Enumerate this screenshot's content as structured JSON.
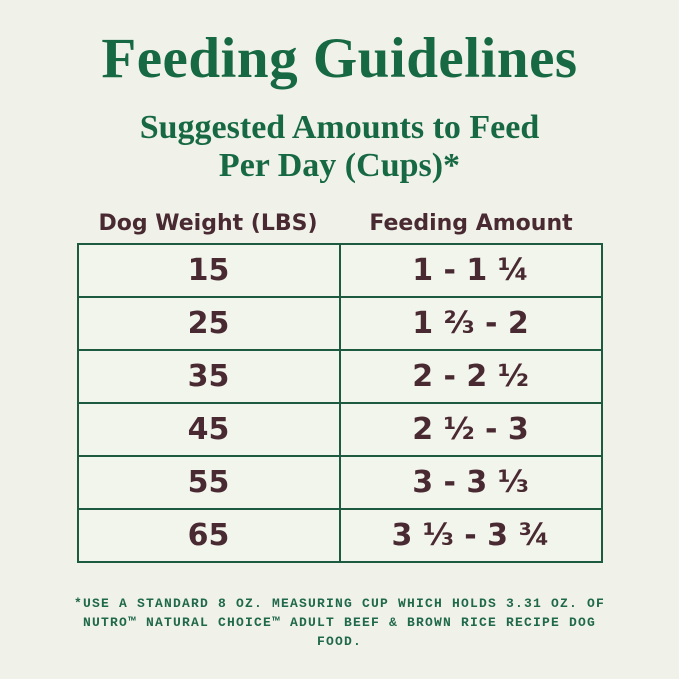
{
  "title": "Feeding Guidelines",
  "subtitle": {
    "line1": "Suggested Amounts to Feed",
    "line2": "Per Day (Cups)*"
  },
  "chart_data": {
    "type": "table",
    "title": "Feeding Guidelines",
    "subtitle": "Suggested Amounts to Feed Per Day (Cups)*",
    "columns": [
      "Dog Weight (LBS)",
      "Feeding Amount"
    ],
    "rows": [
      [
        "15",
        "1 - 1 ¼"
      ],
      [
        "25",
        "1 ⅔ - 2"
      ],
      [
        "35",
        "2 - 2 ½"
      ],
      [
        "45",
        "2 ½ - 3"
      ],
      [
        "55",
        "3 - 3 ⅓"
      ],
      [
        "65",
        "3 ⅓ - 3 ¾"
      ]
    ],
    "weights_lbs": [
      15,
      25,
      35,
      45,
      55,
      65
    ],
    "feeding_cups_min": [
      1,
      1.67,
      2,
      2.5,
      3,
      3.33
    ],
    "feeding_cups_max": [
      1.25,
      2,
      2.5,
      3,
      3.33,
      3.75
    ]
  },
  "footnote": {
    "line1": "*USE A STANDARD 8 OZ. MEASURING CUP WHICH HOLDS 3.31 OZ. OF",
    "line2": "NUTRO™ NATURAL CHOICE™ ADULT BEEF & BROWN RICE RECIPE DOG FOOD."
  },
  "colors": {
    "background": "#f0f2e9",
    "title_green": "#176943",
    "border_green": "#1d5a40",
    "text_brown": "#4a2a32",
    "footnote_green": "#20684a"
  }
}
